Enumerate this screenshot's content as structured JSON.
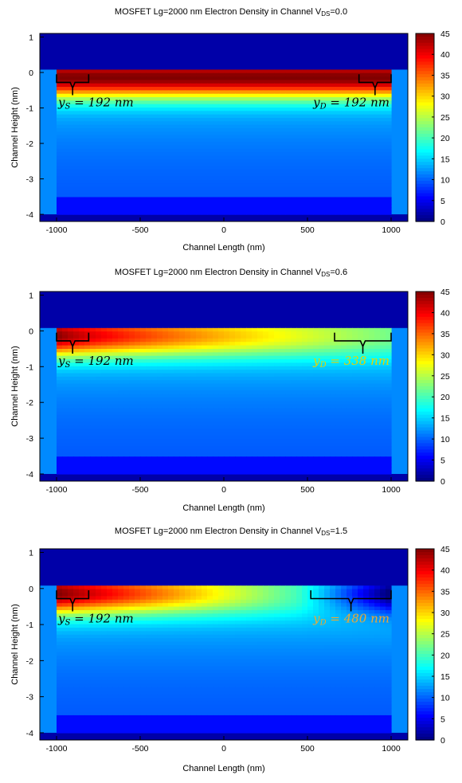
{
  "chart_data": [
    {
      "type": "heatmap",
      "title": "MOSFET Lg=2000 nm Electron Density in Channel V",
      "title_sub": "DS",
      "title_tail": "=0.0",
      "xlabel": "Channel Length (nm)",
      "ylabel": "Channel Height (nm)",
      "xlim": [
        -1100,
        1100
      ],
      "ylim": [
        -4.2,
        1.1
      ],
      "xticks": [
        -1000,
        -500,
        0,
        500,
        1000
      ],
      "yticks": [
        1,
        0,
        -1,
        -2,
        -3,
        -4
      ],
      "colorbar": {
        "min": 0,
        "max": 45,
        "ticks": [
          0,
          5,
          10,
          15,
          20,
          25,
          30,
          35,
          40,
          45
        ]
      },
      "vds": 0.0,
      "annotations": [
        {
          "var": "y",
          "sub": "S",
          "text": " = 192 nm",
          "span_nm": [
            -1000,
            -808
          ],
          "color": "#000000"
        },
        {
          "var": "y",
          "sub": "D",
          "text": " = 192 nm",
          "span_nm": [
            808,
            1000
          ],
          "color": "#000000"
        }
      ]
    },
    {
      "type": "heatmap",
      "title": "MOSFET Lg=2000 nm Electron Density in Channel V",
      "title_sub": "DS",
      "title_tail": "=0.6",
      "xlabel": "Channel Length (nm)",
      "ylabel": "Channel Height (nm)",
      "xlim": [
        -1100,
        1100
      ],
      "ylim": [
        -4.2,
        1.1
      ],
      "xticks": [
        -1000,
        -500,
        0,
        500,
        1000
      ],
      "yticks": [
        1,
        0,
        -1,
        -2,
        -3,
        -4
      ],
      "colorbar": {
        "min": 0,
        "max": 45,
        "ticks": [
          0,
          5,
          10,
          15,
          20,
          25,
          30,
          35,
          40,
          45
        ]
      },
      "vds": 0.6,
      "annotations": [
        {
          "var": "y",
          "sub": "S",
          "text": " = 192 nm",
          "span_nm": [
            -1000,
            -808
          ],
          "color": "#000000"
        },
        {
          "var": "y",
          "sub": "D",
          "text": " = 338 nm",
          "span_nm": [
            662,
            1000
          ],
          "color": "#e8d400"
        }
      ]
    },
    {
      "type": "heatmap",
      "title": "MOSFET Lg=2000 nm Electron Density in Channel V",
      "title_sub": "DS",
      "title_tail": "=1.5",
      "xlabel": "Channel Length (nm)",
      "ylabel": "Channel Height (nm)",
      "xlim": [
        -1100,
        1100
      ],
      "ylim": [
        -4.2,
        1.1
      ],
      "xticks": [
        -1000,
        -500,
        0,
        500,
        1000
      ],
      "yticks": [
        1,
        0,
        -1,
        -2,
        -3,
        -4
      ],
      "colorbar": {
        "min": 0,
        "max": 45,
        "ticks": [
          0,
          5,
          10,
          15,
          20,
          25,
          30,
          35,
          40,
          45
        ]
      },
      "vds": 1.5,
      "annotations": [
        {
          "var": "y",
          "sub": "S",
          "text": " = 192 nm",
          "span_nm": [
            -1000,
            -808
          ],
          "color": "#000000"
        },
        {
          "var": "y",
          "sub": "D",
          "text": " = 480 nm",
          "span_nm": [
            520,
            1000
          ],
          "color": "#f0a830"
        }
      ]
    }
  ]
}
